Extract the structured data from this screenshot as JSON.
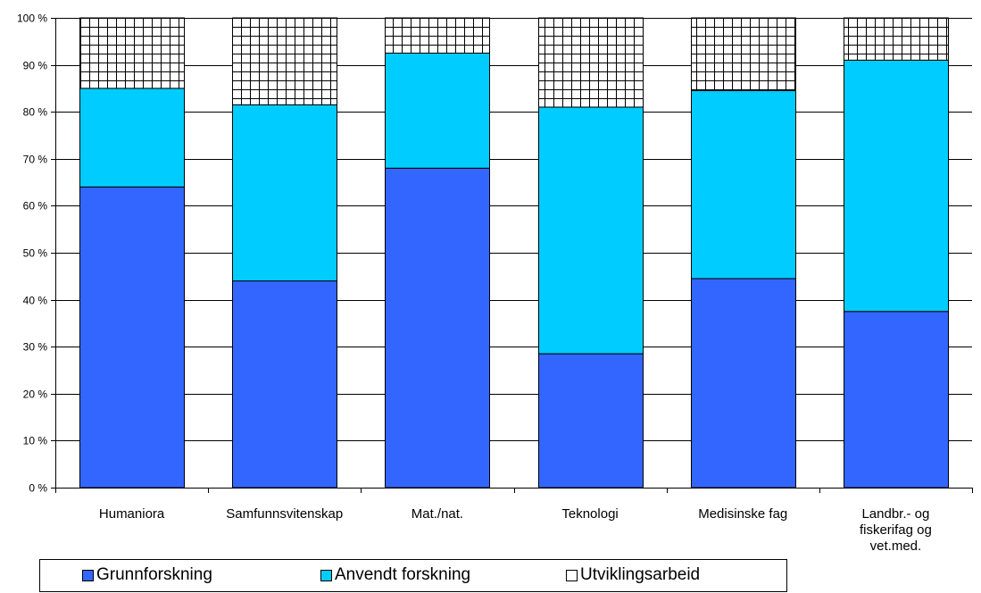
{
  "chart_data": {
    "type": "bar",
    "stacked": true,
    "percent": true,
    "categories": [
      [
        "Humaniora"
      ],
      [
        "Samfunnsvitenskap"
      ],
      [
        "Mat./nat."
      ],
      [
        "Teknologi"
      ],
      [
        "Medisinske fag"
      ],
      [
        "Landbr.- og",
        "fiskerifag og",
        "vet.med."
      ]
    ],
    "series": [
      {
        "name": "Grunnforskning",
        "color": "#3366FF",
        "pattern": "solid",
        "values": [
          64,
          44,
          68,
          28.5,
          44.5,
          37.5
        ]
      },
      {
        "name": "Anvendt forskning",
        "color": "#00CCFF",
        "pattern": "solid",
        "values": [
          21,
          37.5,
          24.5,
          52.5,
          40,
          53.5
        ]
      },
      {
        "name": "Utviklingsarbeid",
        "color": "#FFFFFF",
        "pattern": "grid",
        "values": [
          15,
          18.5,
          7.5,
          19,
          15.5,
          9
        ]
      }
    ],
    "ylim": [
      0,
      100
    ],
    "yticks": [
      "0 %",
      "10 %",
      "20 %",
      "30 %",
      "40 %",
      "50 %",
      "60 %",
      "70 %",
      "80 %",
      "90 %",
      "100 %"
    ],
    "grid": true,
    "legend_position": "bottom",
    "title": "",
    "xlabel": "",
    "ylabel": ""
  }
}
